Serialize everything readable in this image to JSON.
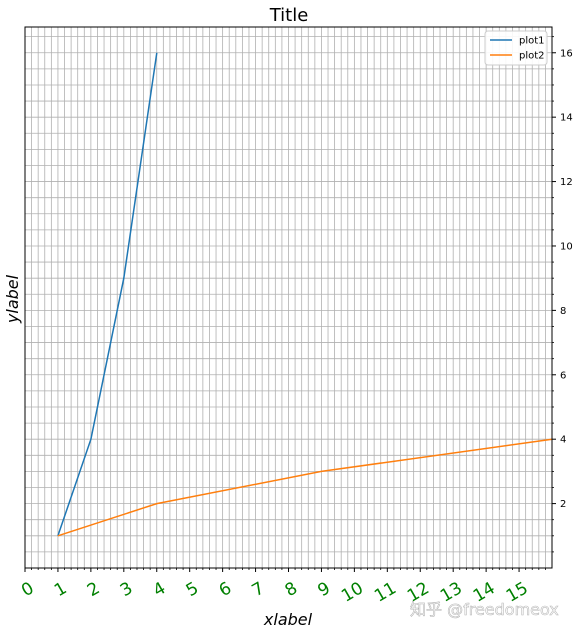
{
  "chart_data": {
    "type": "line",
    "title": "Title",
    "xlabel": "xlabel",
    "ylabel": "ylabel",
    "xlim": [
      0,
      16
    ],
    "ylim": [
      0,
      16.8
    ],
    "x_ticks": [
      0,
      1,
      2,
      3,
      4,
      5,
      6,
      7,
      8,
      9,
      10,
      11,
      12,
      13,
      14,
      15
    ],
    "y_ticks": [
      2,
      4,
      6,
      8,
      10,
      12,
      14,
      16
    ],
    "y_axis_side": "right",
    "grid": "major and minor",
    "legend_position": "top-right",
    "series": [
      {
        "name": "plot1",
        "color": "#1f77b4",
        "x": [
          1,
          2,
          3,
          4
        ],
        "y": [
          1,
          4,
          9,
          16
        ]
      },
      {
        "name": "plot2",
        "color": "#ff7f0e",
        "x": [
          1,
          4,
          9,
          16
        ],
        "y": [
          1,
          2,
          3,
          4
        ]
      }
    ]
  },
  "tick_color": "#008000",
  "watermark": "知乎 @freedomeox"
}
